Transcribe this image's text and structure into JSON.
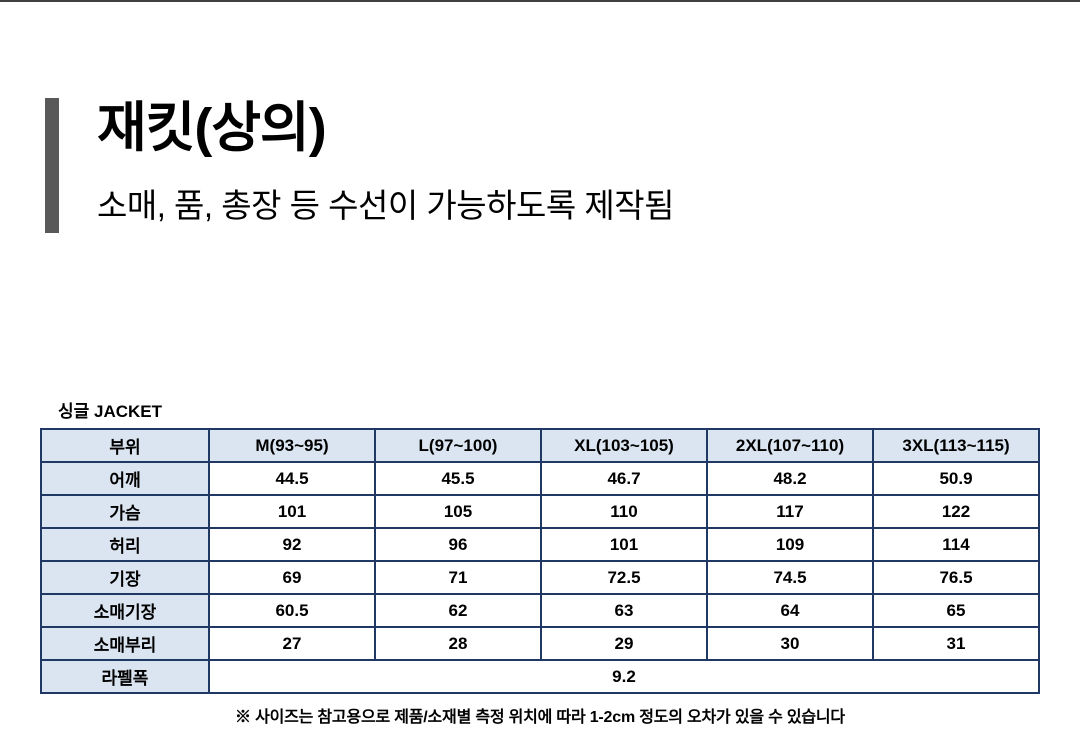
{
  "page": {
    "title": "재킷(상의)",
    "subtitle": "소매, 품, 총장 등 수선이 가능하도록 제작됨"
  },
  "table": {
    "caption": "싱글 JACKET",
    "headers": [
      "부위",
      "M(93~95)",
      "L(97~100)",
      "XL(103~105)",
      "2XL(107~110)",
      "3XL(113~115)"
    ],
    "rows": [
      {
        "label": "어깨",
        "values": [
          "44.5",
          "45.5",
          "46.7",
          "48.2",
          "50.9"
        ]
      },
      {
        "label": "가슴",
        "values": [
          "101",
          "105",
          "110",
          "117",
          "122"
        ]
      },
      {
        "label": "허리",
        "values": [
          "92",
          "96",
          "101",
          "109",
          "114"
        ]
      },
      {
        "label": "기장",
        "values": [
          "69",
          "71",
          "72.5",
          "74.5",
          "76.5"
        ]
      },
      {
        "label": "소매기장",
        "values": [
          "60.5",
          "62",
          "63",
          "64",
          "65"
        ]
      },
      {
        "label": "소매부리",
        "values": [
          "27",
          "28",
          "29",
          "30",
          "31"
        ]
      }
    ],
    "span_row": {
      "label": "라펠폭",
      "value": "9.2"
    },
    "footnote": "※ 사이즈는 참고용으로 제품/소재별 측정 위치에 따라 1-2cm 정도의 오차가 있을 수 있습니다"
  },
  "colors": {
    "table_border": "#1f3864",
    "header_bg": "#dbe5f1",
    "accent_bar": "#595959"
  }
}
